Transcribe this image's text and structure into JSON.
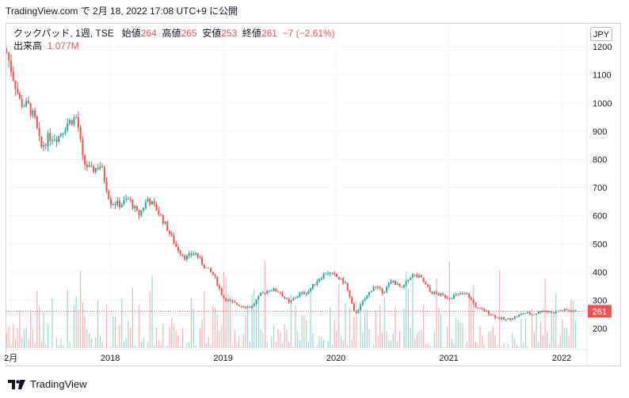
{
  "snapshot_header": "TradingView.com で 2月 18, 2022 17:08 UTC+9 に公開",
  "legend": {
    "symbol": "クックパッド, 1週, TSE",
    "open_label": "始値",
    "open_value": "264",
    "high_label": "高値",
    "high_value": "265",
    "low_label": "安値",
    "low_value": "253",
    "close_label": "終値",
    "close_value": "261",
    "change": "−7 (−2.61%)",
    "volume_label": "出来高",
    "volume_value": "1.077M"
  },
  "currency": "JPY",
  "price_badge": "261",
  "footer": {
    "brand": "TradingView",
    "logo_icon": "tradingview-logo-icon"
  },
  "colors": {
    "up": "#26a69a",
    "down": "#ef5350",
    "grid": "#f0f3fa",
    "axis_text": "#131722"
  },
  "chart_data": {
    "type": "candlestick",
    "interval": "1週",
    "last_close": 261,
    "y_axis": {
      "ticks": [
        200,
        300,
        400,
        500,
        600,
        700,
        800,
        900,
        1000,
        1100,
        1200
      ],
      "range": [
        130,
        1220
      ]
    },
    "x_axis": {
      "tick_labels": [
        "2月",
        "2018",
        "2019",
        "2020",
        "2021",
        "2022"
      ],
      "tick_positions_fraction_of_years": [
        2017.12,
        2018.0,
        2019.0,
        2020.0,
        2021.0,
        2022.0
      ]
    },
    "price_path": [
      [
        "2017-02-01",
        1180
      ],
      [
        "2017-02-20",
        1100
      ],
      [
        "2017-03-15",
        1000
      ],
      [
        "2017-04-10",
        990
      ],
      [
        "2017-05-01",
        940
      ],
      [
        "2017-05-20",
        840
      ],
      [
        "2017-06-15",
        880
      ],
      [
        "2017-07-15",
        880
      ],
      [
        "2017-08-15",
        930
      ],
      [
        "2017-09-15",
        950
      ],
      [
        "2017-10-05",
        790
      ],
      [
        "2017-11-01",
        760
      ],
      [
        "2017-12-01",
        780
      ],
      [
        "2018-01-01",
        650
      ],
      [
        "2018-02-01",
        640
      ],
      [
        "2018-03-01",
        660
      ],
      [
        "2018-04-01",
        600
      ],
      [
        "2018-05-01",
        660
      ],
      [
        "2018-06-01",
        620
      ],
      [
        "2018-07-01",
        560
      ],
      [
        "2018-08-01",
        490
      ],
      [
        "2018-09-01",
        450
      ],
      [
        "2018-10-01",
        470
      ],
      [
        "2018-11-01",
        420
      ],
      [
        "2018-12-01",
        390
      ],
      [
        "2019-01-01",
        310
      ],
      [
        "2019-02-01",
        290
      ],
      [
        "2019-03-01",
        280
      ],
      [
        "2019-04-01",
        275
      ],
      [
        "2019-05-01",
        320
      ],
      [
        "2019-06-01",
        340
      ],
      [
        "2019-07-01",
        330
      ],
      [
        "2019-08-01",
        290
      ],
      [
        "2019-09-01",
        320
      ],
      [
        "2019-10-01",
        330
      ],
      [
        "2019-11-01",
        370
      ],
      [
        "2019-12-01",
        400
      ],
      [
        "2020-01-01",
        385
      ],
      [
        "2020-02-01",
        360
      ],
      [
        "2020-03-01",
        250
      ],
      [
        "2020-04-01",
        300
      ],
      [
        "2020-05-01",
        350
      ],
      [
        "2020-06-01",
        330
      ],
      [
        "2020-07-01",
        370
      ],
      [
        "2020-08-01",
        340
      ],
      [
        "2020-09-01",
        390
      ],
      [
        "2020-10-01",
        380
      ],
      [
        "2020-11-01",
        330
      ],
      [
        "2020-12-01",
        320
      ],
      [
        "2021-01-01",
        310
      ],
      [
        "2021-02-01",
        320
      ],
      [
        "2021-03-01",
        320
      ],
      [
        "2021-04-01",
        270
      ],
      [
        "2021-05-01",
        260
      ],
      [
        "2021-06-01",
        240
      ],
      [
        "2021-07-01",
        230
      ],
      [
        "2021-08-01",
        240
      ],
      [
        "2021-09-01",
        255
      ],
      [
        "2021-10-01",
        250
      ],
      [
        "2021-11-01",
        265
      ],
      [
        "2021-12-01",
        255
      ],
      [
        "2022-01-01",
        265
      ],
      [
        "2022-02-18",
        261
      ]
    ],
    "volume": {
      "note": "per-week volume bars; latest 1.077M"
    }
  }
}
